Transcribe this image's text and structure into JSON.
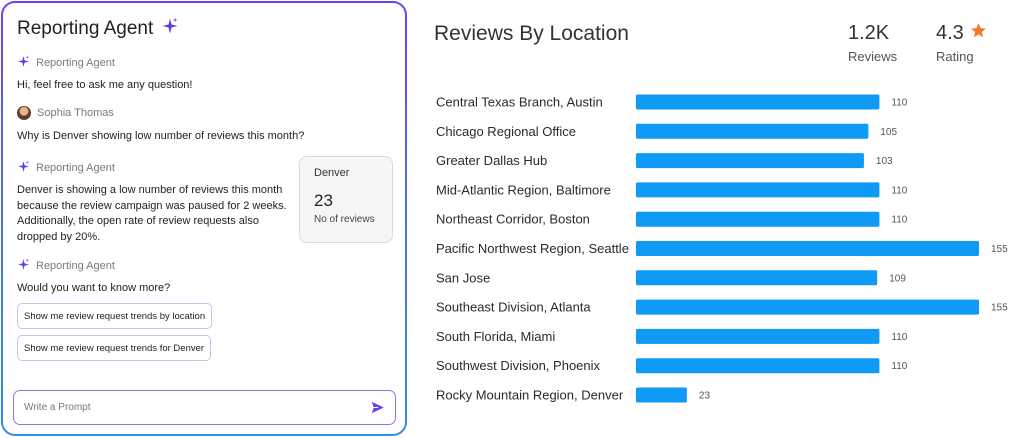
{
  "agent_panel": {
    "title": "Reporting Agent",
    "messages": [
      {
        "sender": "Reporting Agent",
        "text": "Hi, feel free to ask me any question!"
      },
      {
        "sender": "Sophia Thomas",
        "text": "Why is Denver showing low number of reviews this month?"
      },
      {
        "sender": "Reporting Agent",
        "lines": [
          "Denver is showing a low number of reviews this month",
          "because the review campaign was paused for 2 weeks.",
          "Additionally, the open rate of review requests also",
          "dropped by 20%."
        ]
      },
      {
        "sender": "Reporting Agent",
        "text": "Would you want to know more?"
      }
    ],
    "card": {
      "label": "Denver",
      "value": "23",
      "sublabel": "No of reviews"
    },
    "suggestions": [
      "Show me review request trends by location",
      "Show me review request trends for Denver"
    ],
    "prompt": {
      "placeholder": "Write a Prompt",
      "value": ""
    },
    "icons": {
      "agent": "sparkle-icon",
      "send": "send-icon"
    },
    "colors": {
      "accent": "#5a3ee8",
      "border_gradient_start": "#6a3ff0",
      "border_gradient_end": "#2f8fe6"
    }
  },
  "summary": {
    "reviews_value": "1.2K",
    "reviews_label": "Reviews",
    "rating_value": "4.3",
    "rating_label": "Rating",
    "rating_icon": "star-icon",
    "star_color": "#f4792b"
  },
  "chart_data": {
    "type": "bar",
    "orientation": "horizontal",
    "title": "Reviews By Location",
    "categories": [
      "Central Texas Branch, Austin",
      "Chicago Regional Office",
      "Greater Dallas Hub",
      "Mid-Atlantic Region, Baltimore",
      "Northeast Corridor, Boston",
      "Pacific Northwest Region, Seattle",
      "San Jose",
      "Southeast Division, Atlanta",
      "South Florida, Miami",
      "Southwest Division, Phoenix",
      "Rocky Mountain Region, Denver"
    ],
    "values": [
      110,
      105,
      103,
      110,
      110,
      155,
      109,
      155,
      110,
      110,
      23
    ],
    "bar_color": "#0f9af5",
    "xlim": [
      0,
      155
    ],
    "grid": false,
    "legend": "none",
    "data_labels": true
  }
}
